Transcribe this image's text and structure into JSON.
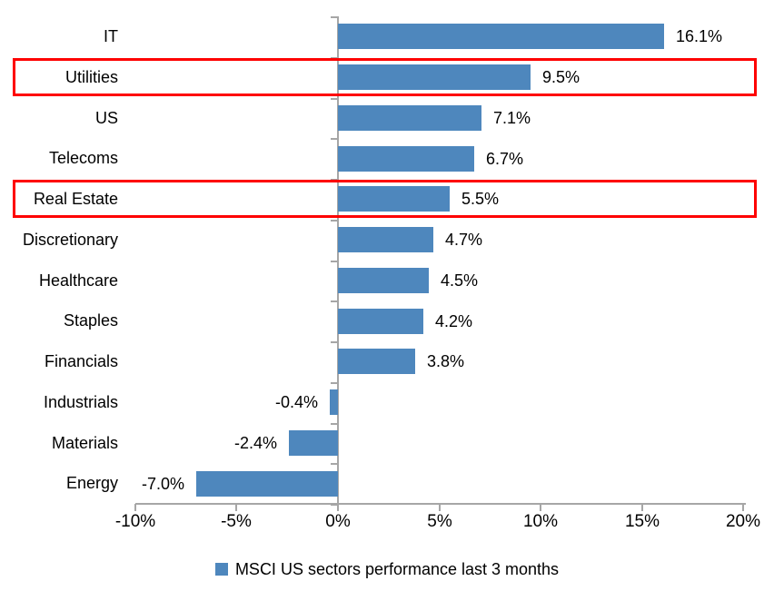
{
  "chart_data": {
    "type": "bar",
    "orientation": "horizontal",
    "title": "",
    "categories": [
      "IT",
      "Utilities",
      "US",
      "Telecoms",
      "Real Estate",
      "Discretionary",
      "Healthcare",
      "Staples",
      "Financials",
      "Industrials",
      "Materials",
      "Energy"
    ],
    "values": [
      16.1,
      9.5,
      7.1,
      6.7,
      5.5,
      4.7,
      4.5,
      4.2,
      3.8,
      -0.4,
      -2.4,
      -7.0
    ],
    "value_labels": [
      "16.1%",
      "9.5%",
      "7.1%",
      "6.7%",
      "5.5%",
      "4.7%",
      "4.5%",
      "4.2%",
      "3.8%",
      "-0.4%",
      "-2.4%",
      "-7.0%"
    ],
    "xlim": [
      -10,
      20
    ],
    "x_ticks": [
      "-10%",
      "-5%",
      "0%",
      "5%",
      "10%",
      "15%",
      "20%"
    ],
    "x_tick_values": [
      -10,
      -5,
      0,
      5,
      10,
      15,
      20
    ],
    "grid": false,
    "legend": "MSCI US sectors performance last 3 months",
    "legend_position": "bottom-center",
    "highlighted_categories": [
      "Utilities",
      "Real Estate"
    ],
    "colors": {
      "bar": "#4e87bd",
      "highlight_border": "#fe0000",
      "axis": "#a6a6a6",
      "text": "#000000",
      "background": "#ffffff"
    }
  }
}
